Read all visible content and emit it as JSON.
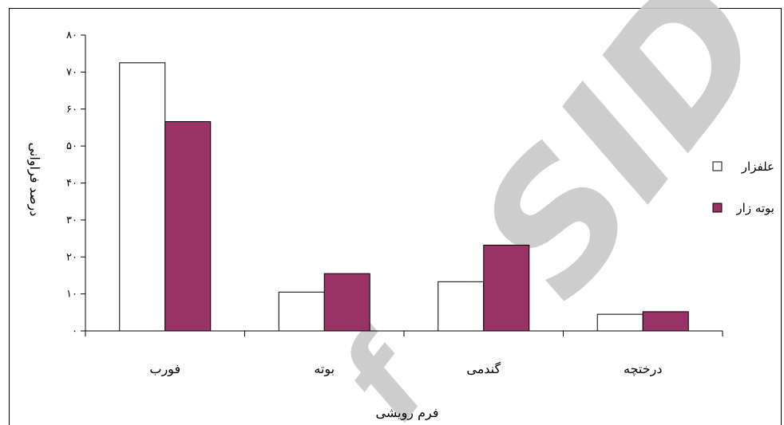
{
  "chart_data": {
    "type": "bar",
    "categories": [
      "فورب",
      "بوته",
      "گندمی",
      "درختچه"
    ],
    "series": [
      {
        "name": "علفزار",
        "values": [
          72.5,
          10.5,
          13.3,
          4.5
        ],
        "color": "#ffffff"
      },
      {
        "name": "بوته زار",
        "values": [
          56.6,
          15.5,
          23.2,
          5.2
        ],
        "color": "#993366"
      }
    ],
    "xlabel": "فرم رویشی",
    "ylabel": "درصد فراوانی",
    "ylim": [
      0,
      80
    ],
    "yticks": [
      0,
      10,
      20,
      30,
      40,
      50,
      60,
      70,
      80
    ],
    "ytick_labels": [
      "۰",
      "۱۰",
      "۲۰",
      "۳۰",
      "۴۰",
      "۵۰",
      "۶۰",
      "۷۰",
      "۸۰"
    ],
    "grid": false,
    "legend_position": "right"
  },
  "watermark": {
    "text": "SID",
    "color": "#c8c8c8"
  }
}
